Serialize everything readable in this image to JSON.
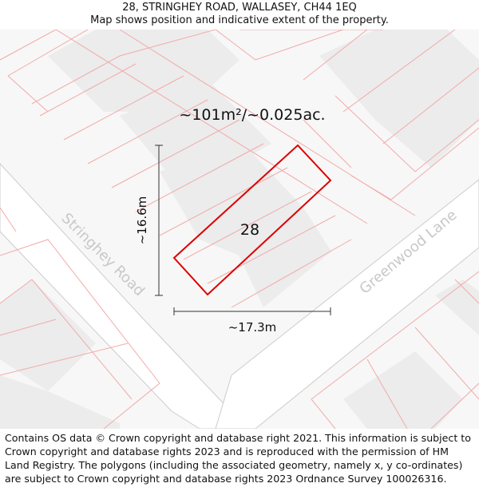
{
  "header": {
    "title": "28, STRINGHEY ROAD, WALLASEY, CH44 1EQ",
    "subtitle": "Map shows position and indicative extent of the property."
  },
  "map": {
    "area_label": "~101m²/~0.025ac.",
    "plot_number": "28",
    "height_label": "~16.6m",
    "width_label": "~17.3m",
    "road_1": "Stringhey Road",
    "road_2": "Greenwood Lane",
    "colors": {
      "property_outline": "#dd0000",
      "parcel_lines": "#f2aaaa",
      "building_fill": "#efefef",
      "road_edge": "#cccccc",
      "road_label": "#c8c8c8"
    }
  },
  "footer": {
    "attribution": "Contains OS data © Crown copyright and database right 2021. This information is subject to Crown copyright and database rights 2023 and is reproduced with the permission of HM Land Registry. The polygons (including the associated geometry, namely x, y co-ordinates) are subject to Crown copyright and database rights 2023 Ordnance Survey 100026316."
  }
}
